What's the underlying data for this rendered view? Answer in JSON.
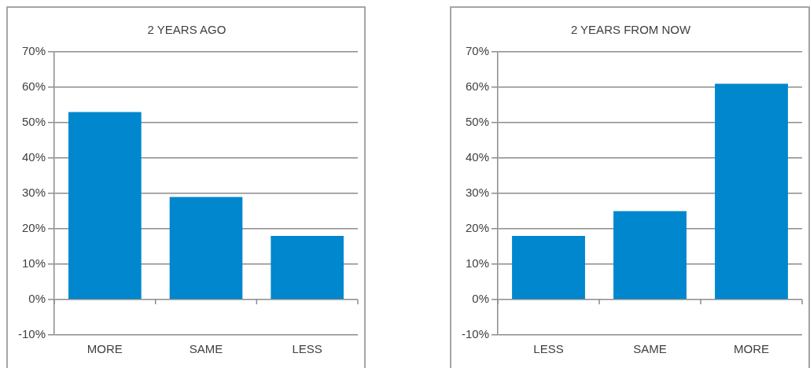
{
  "chart_data": [
    {
      "type": "bar",
      "title": "2 YEARS AGO",
      "categories": [
        "MORE",
        "SAME",
        "LESS"
      ],
      "values": [
        53,
        29,
        18
      ],
      "color": "#0087cd",
      "ylim": [
        -10,
        70
      ],
      "yticks": [
        {
          "value": -10,
          "label": "-10%"
        },
        {
          "value": 0,
          "label": "0%"
        },
        {
          "value": 10,
          "label": "10%"
        },
        {
          "value": 20,
          "label": "20%"
        },
        {
          "value": 30,
          "label": "30%"
        },
        {
          "value": 40,
          "label": "40%"
        },
        {
          "value": 50,
          "label": "50%"
        },
        {
          "value": 60,
          "label": "60%"
        },
        {
          "value": 70,
          "label": "70%"
        }
      ],
      "grid": "y",
      "legend": false
    },
    {
      "type": "bar",
      "title": "2 YEARS FROM NOW",
      "categories": [
        "LESS",
        "SAME",
        "MORE"
      ],
      "values": [
        18,
        25,
        61
      ],
      "color": "#0087cd",
      "ylim": [
        -10,
        70
      ],
      "yticks": [
        {
          "value": -10,
          "label": "-10%"
        },
        {
          "value": 0,
          "label": "0%"
        },
        {
          "value": 10,
          "label": "10%"
        },
        {
          "value": 20,
          "label": "20%"
        },
        {
          "value": 30,
          "label": "30%"
        },
        {
          "value": 40,
          "label": "40%"
        },
        {
          "value": 50,
          "label": "50%"
        },
        {
          "value": 60,
          "label": "60%"
        },
        {
          "value": 70,
          "label": "70%"
        }
      ],
      "grid": "y",
      "legend": false
    }
  ]
}
